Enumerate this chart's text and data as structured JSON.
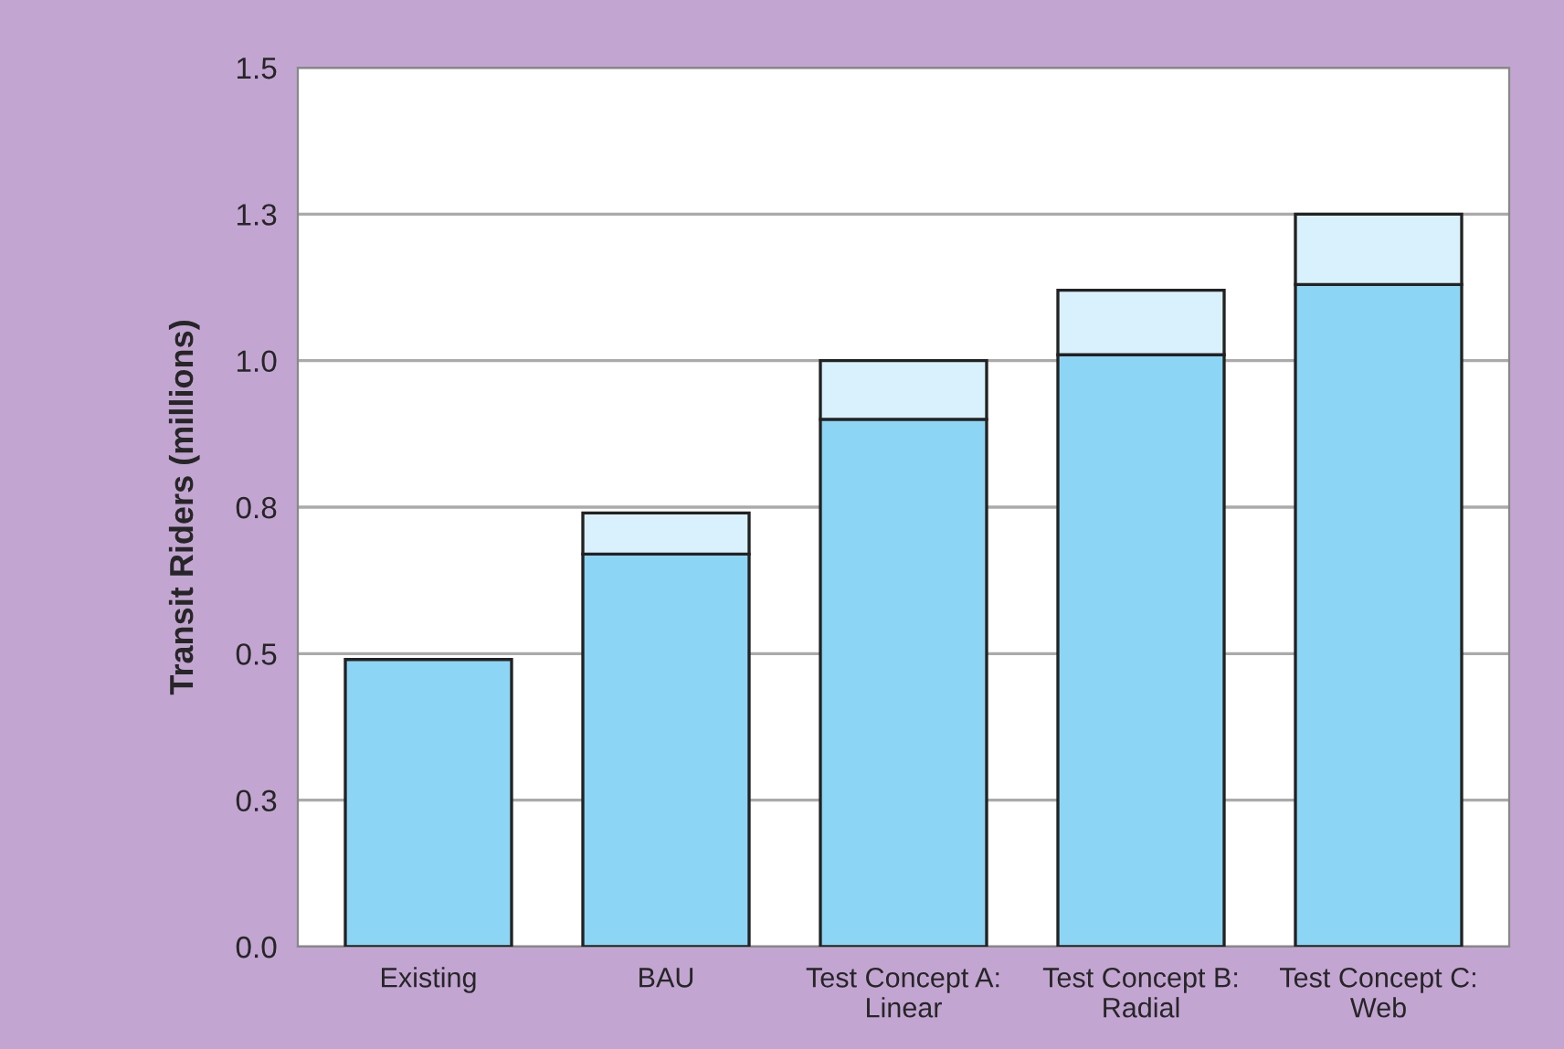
{
  "chart_data": {
    "type": "bar",
    "stacked": true,
    "ylabel": "Transit Riders (millions)",
    "categories": [
      "Existing",
      "BAU",
      "Test Concept A:\nLinear",
      "Test Concept B:\nRadial",
      "Test Concept C:\nWeb"
    ],
    "series": [
      {
        "color": "#8dd5f5",
        "values": [
          0.49,
          0.67,
          0.9,
          1.01,
          1.13
        ]
      },
      {
        "color": "#d9f1fc",
        "values": [
          null,
          0.07,
          0.1,
          0.11,
          0.12
        ]
      }
    ],
    "ylim": [
      0,
      1.5
    ],
    "yticks": [
      {
        "value": 0,
        "label": "0.0"
      },
      {
        "value": 0.25,
        "label": "0.3"
      },
      {
        "value": 0.5,
        "label": "0.5"
      },
      {
        "value": 0.75,
        "label": "0.8"
      },
      {
        "value": 1.0,
        "label": "1.0"
      },
      {
        "value": 1.25,
        "label": "1.3"
      },
      {
        "value": 1.5,
        "label": "1.5"
      }
    ],
    "grid": "y",
    "legend": false
  }
}
